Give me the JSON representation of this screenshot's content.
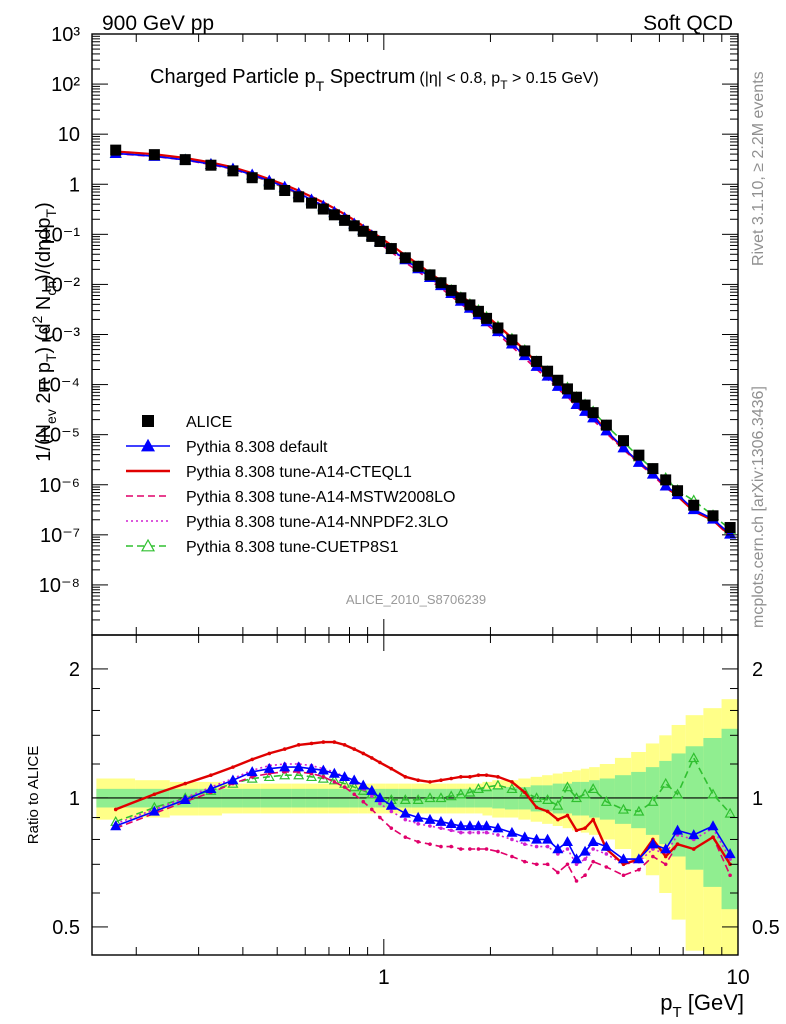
{
  "header": {
    "left_label": "900 GeV pp",
    "right_label": "Soft QCD"
  },
  "side_labels": {
    "rivet": "Rivet 3.1.10, ≥ 2.2M events",
    "mcplots": "mcplots.cern.ch [arXiv:1306.3436]"
  },
  "analysis_id": "ALICE_2010_S8706239",
  "chart_data": [
    {
      "type": "scatter",
      "panel": "spectrum",
      "title_main": "Charged Particle p",
      "title_main_sub": "T",
      "title_main_tail": " Spectrum",
      "title_cuts": "(|η| < 0.8, p",
      "title_cuts_sub": "T",
      "title_cuts_tail": " > 0.15 GeV)",
      "ylabel": "1/(N_ev 2π p_T) (d² N_ch)/(dηdp_T)",
      "ylog": true,
      "xlog": true,
      "xlim": [
        0.15,
        10
      ],
      "ylim": [
        1e-09,
        1000.0
      ],
      "y_tick_labels": [
        "10³",
        "10²",
        "10",
        "1",
        "10⁻¹",
        "10⁻²",
        "10⁻³",
        "10⁻⁴",
        "10⁻⁵",
        "10⁻⁶",
        "10⁻⁷",
        "10⁻⁸"
      ],
      "legend_position": "lower-left",
      "x": [
        0.175,
        0.225,
        0.275,
        0.325,
        0.375,
        0.425,
        0.475,
        0.525,
        0.575,
        0.625,
        0.675,
        0.725,
        0.775,
        0.825,
        0.875,
        0.925,
        0.975,
        1.05,
        1.15,
        1.25,
        1.35,
        1.45,
        1.55,
        1.65,
        1.75,
        1.85,
        1.95,
        2.1,
        2.3,
        2.5,
        2.7,
        2.9,
        3.1,
        3.3,
        3.5,
        3.7,
        3.9,
        4.25,
        4.75,
        5.25,
        5.75,
        6.25,
        6.75,
        7.5,
        8.5,
        9.5
      ],
      "series": [
        {
          "name": "ALICE",
          "marker": "square",
          "color": "#000000",
          "values": [
            4.8,
            3.9,
            3.1,
            2.4,
            1.85,
            1.35,
            1.0,
            0.75,
            0.56,
            0.42,
            0.32,
            0.245,
            0.19,
            0.148,
            0.115,
            0.091,
            0.072,
            0.052,
            0.034,
            0.023,
            0.0155,
            0.0108,
            0.0076,
            0.0054,
            0.0039,
            0.0029,
            0.0021,
            0.00135,
            0.00078,
            0.00047,
            0.00029,
            0.000185,
            0.000122,
            8.2e-05,
            5.6e-05,
            3.9e-05,
            2.75e-05,
            1.55e-05,
            7.6e-06,
            3.9e-06,
            2.1e-06,
            1.25e-06,
            7.6e-07,
            3.9e-07,
            2.4e-07,
            1.4e-07
          ]
        },
        {
          "name": "Pythia 8.308 default",
          "color": "#0000ff",
          "style": "solid",
          "marker": "triangle",
          "ratio": [
            0.86,
            0.93,
            0.99,
            1.05,
            1.1,
            1.15,
            1.17,
            1.18,
            1.18,
            1.17,
            1.16,
            1.14,
            1.12,
            1.1,
            1.07,
            1.04,
            1.0,
            0.96,
            0.92,
            0.9,
            0.89,
            0.88,
            0.87,
            0.86,
            0.86,
            0.86,
            0.86,
            0.85,
            0.83,
            0.81,
            0.8,
            0.8,
            0.76,
            0.79,
            0.72,
            0.75,
            0.79,
            0.77,
            0.72,
            0.72,
            0.78,
            0.76,
            0.84,
            0.82,
            0.86,
            0.74
          ]
        },
        {
          "name": "Pythia 8.308 tune-A14-CTEQL1",
          "color": "#e00000",
          "style": "solid",
          "marker": "none",
          "ratio": [
            0.94,
            1.02,
            1.08,
            1.13,
            1.18,
            1.23,
            1.27,
            1.3,
            1.33,
            1.34,
            1.35,
            1.35,
            1.33,
            1.3,
            1.27,
            1.24,
            1.21,
            1.17,
            1.12,
            1.1,
            1.09,
            1.1,
            1.11,
            1.12,
            1.12,
            1.13,
            1.13,
            1.12,
            1.09,
            1.03,
            0.95,
            0.93,
            0.89,
            0.91,
            0.84,
            0.85,
            0.89,
            0.76,
            0.7,
            0.72,
            0.8,
            0.73,
            0.78,
            0.76,
            0.81,
            0.7
          ]
        },
        {
          "name": "Pythia 8.308 tune-A14-MSTW2008LO",
          "color": "#e0006a",
          "style": "dashed",
          "marker": "none",
          "ratio": [
            0.85,
            0.92,
            0.98,
            1.03,
            1.08,
            1.12,
            1.14,
            1.15,
            1.15,
            1.14,
            1.12,
            1.09,
            1.06,
            1.02,
            0.98,
            0.94,
            0.9,
            0.85,
            0.81,
            0.79,
            0.78,
            0.77,
            0.77,
            0.76,
            0.76,
            0.76,
            0.76,
            0.75,
            0.73,
            0.71,
            0.7,
            0.7,
            0.67,
            0.7,
            0.64,
            0.66,
            0.71,
            0.69,
            0.66,
            0.68,
            0.73,
            0.7,
            0.78,
            0.76,
            0.81,
            0.66
          ]
        },
        {
          "name": "Pythia 8.308 tune-A14-NNPDF2.3LO",
          "color": "#d020d0",
          "style": "dotted",
          "marker": "none",
          "ratio": [
            0.87,
            0.94,
            1.0,
            1.06,
            1.11,
            1.16,
            1.19,
            1.2,
            1.2,
            1.19,
            1.17,
            1.15,
            1.12,
            1.09,
            1.05,
            1.01,
            0.97,
            0.93,
            0.89,
            0.87,
            0.86,
            0.85,
            0.84,
            0.83,
            0.83,
            0.83,
            0.83,
            0.82,
            0.8,
            0.78,
            0.77,
            0.77,
            0.74,
            0.76,
            0.7,
            0.72,
            0.76,
            0.74,
            0.7,
            0.71,
            0.76,
            0.74,
            0.82,
            0.8,
            0.85,
            0.72
          ]
        },
        {
          "name": "Pythia 8.308 tune-CUETP8S1",
          "color": "#30c030",
          "style": "dashed",
          "marker": "open-triangle",
          "ratio": [
            0.88,
            0.95,
            1.0,
            1.04,
            1.08,
            1.11,
            1.12,
            1.13,
            1.13,
            1.12,
            1.11,
            1.1,
            1.08,
            1.06,
            1.04,
            1.02,
            1.0,
            0.99,
            0.99,
            0.99,
            1.0,
            1.0,
            1.01,
            1.02,
            1.03,
            1.05,
            1.06,
            1.07,
            1.05,
            1.03,
            1.0,
            0.99,
            0.96,
            1.06,
            1.0,
            1.02,
            1.05,
            0.98,
            0.94,
            0.93,
            0.98,
            1.08,
            1.02,
            1.24,
            1.02,
            0.92
          ]
        }
      ]
    },
    {
      "type": "line",
      "panel": "ratio",
      "ylabel": "Ratio to ALICE",
      "xlabel": "p_T [GeV]",
      "xlog": true,
      "ylog": true,
      "xlim": [
        0.15,
        10
      ],
      "ylim": [
        0.43,
        2.4
      ],
      "y_tick_labels": [
        "0.5",
        "1",
        "2"
      ],
      "x_tick_labels": [
        "1",
        "10"
      ],
      "reference_line": 1.0,
      "band_inner_halfwidth": [
        0.05,
        0.05,
        0.05,
        0.05,
        0.05,
        0.05,
        0.05,
        0.05,
        0.05,
        0.05,
        0.05,
        0.05,
        0.05,
        0.05,
        0.05,
        0.05,
        0.05,
        0.05,
        0.05,
        0.05,
        0.05,
        0.05,
        0.05,
        0.05,
        0.05,
        0.05,
        0.05,
        0.055,
        0.06,
        0.06,
        0.07,
        0.07,
        0.08,
        0.08,
        0.09,
        0.09,
        0.1,
        0.11,
        0.13,
        0.15,
        0.18,
        0.22,
        0.27,
        0.32,
        0.38,
        0.45
      ],
      "band_outer_halfwidth": [
        0.11,
        0.1,
        0.09,
        0.09,
        0.08,
        0.08,
        0.08,
        0.08,
        0.08,
        0.08,
        0.08,
        0.08,
        0.08,
        0.08,
        0.08,
        0.08,
        0.08,
        0.08,
        0.08,
        0.08,
        0.08,
        0.08,
        0.08,
        0.08,
        0.08,
        0.08,
        0.09,
        0.1,
        0.1,
        0.11,
        0.12,
        0.13,
        0.14,
        0.15,
        0.16,
        0.17,
        0.18,
        0.2,
        0.24,
        0.28,
        0.34,
        0.4,
        0.48,
        0.56,
        0.62,
        0.7
      ]
    }
  ]
}
